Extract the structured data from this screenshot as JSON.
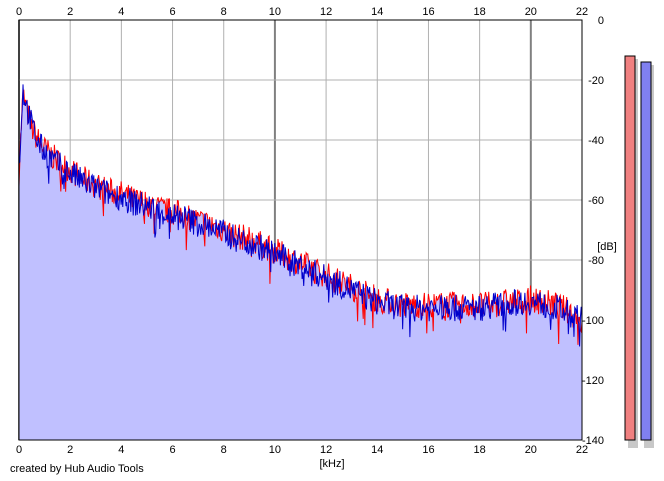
{
  "credit": "created by Hub Audio Tools",
  "chart_data": {
    "type": "area",
    "xlabel": "[kHz]",
    "ylabel": "[dB]",
    "xlim": [
      0,
      22
    ],
    "ylim": [
      -140,
      0
    ],
    "x_ticks": [
      0,
      2,
      4,
      6,
      8,
      10,
      12,
      14,
      16,
      18,
      20,
      22
    ],
    "y_ticks": [
      0,
      -20,
      -40,
      -60,
      -80,
      -100,
      -120,
      -140
    ],
    "y_tick_labels": [
      "0",
      "-20",
      "-40",
      "-60",
      "-80",
      "-100",
      "-120",
      "-140"
    ],
    "grid": true,
    "fill_color": "#c0c0ff",
    "series": [
      {
        "color": "#ff0000",
        "x": [
          0,
          0.15,
          0.3,
          0.5,
          0.75,
          1,
          1.5,
          2,
          2.5,
          3,
          3.5,
          4,
          4.5,
          5,
          5.5,
          6,
          6.5,
          7,
          7.5,
          8,
          8.5,
          9,
          9.5,
          10,
          10.5,
          11,
          11.5,
          12,
          12.5,
          13,
          13.5,
          14,
          14.5,
          15,
          15.5,
          16,
          16.5,
          17,
          17.5,
          18,
          18.5,
          19,
          19.5,
          20,
          20.5,
          21,
          21.5,
          22
        ],
        "y": [
          -51,
          -25,
          -30,
          -36,
          -40,
          -43,
          -47,
          -50,
          -53,
          -55,
          -57,
          -58,
          -60,
          -61,
          -63,
          -64,
          -65,
          -67,
          -68,
          -70,
          -72,
          -73,
          -75,
          -77,
          -79,
          -81,
          -83,
          -85,
          -87,
          -89,
          -91,
          -93,
          -94,
          -95,
          -95,
          -95,
          -95,
          -95,
          -95,
          -95,
          -95,
          -94,
          -94,
          -93,
          -94,
          -95,
          -97,
          -101
        ]
      },
      {
        "color": "#0000cc",
        "x": [
          0,
          0.15,
          0.3,
          0.5,
          0.75,
          1,
          1.5,
          2,
          2.5,
          3,
          3.5,
          4,
          4.5,
          5,
          5.5,
          6,
          6.5,
          7,
          7.5,
          8,
          8.5,
          9,
          9.5,
          10,
          10.5,
          11,
          11.5,
          12,
          12.5,
          13,
          13.5,
          14,
          14.5,
          15,
          15.5,
          16,
          16.5,
          17,
          17.5,
          18,
          18.5,
          19,
          19.5,
          20,
          20.5,
          21,
          21.5,
          22
        ],
        "y": [
          -50,
          -23,
          -29,
          -35,
          -41,
          -44,
          -48,
          -51,
          -54,
          -56,
          -58,
          -59,
          -61,
          -62,
          -64,
          -65,
          -66,
          -68,
          -69,
          -71,
          -73,
          -74,
          -76,
          -78,
          -80,
          -82,
          -84,
          -86,
          -88,
          -90,
          -92,
          -94,
          -95,
          -96,
          -96,
          -96,
          -96,
          -96,
          -96,
          -96,
          -95,
          -95,
          -94,
          -94,
          -95,
          -96,
          -98,
          -100
        ]
      }
    ],
    "level_meters": [
      {
        "color": "#f08080",
        "top_db": -12,
        "bottom_db": -140
      },
      {
        "color": "#8080f0",
        "top_db": -14,
        "bottom_db": -140
      }
    ]
  }
}
